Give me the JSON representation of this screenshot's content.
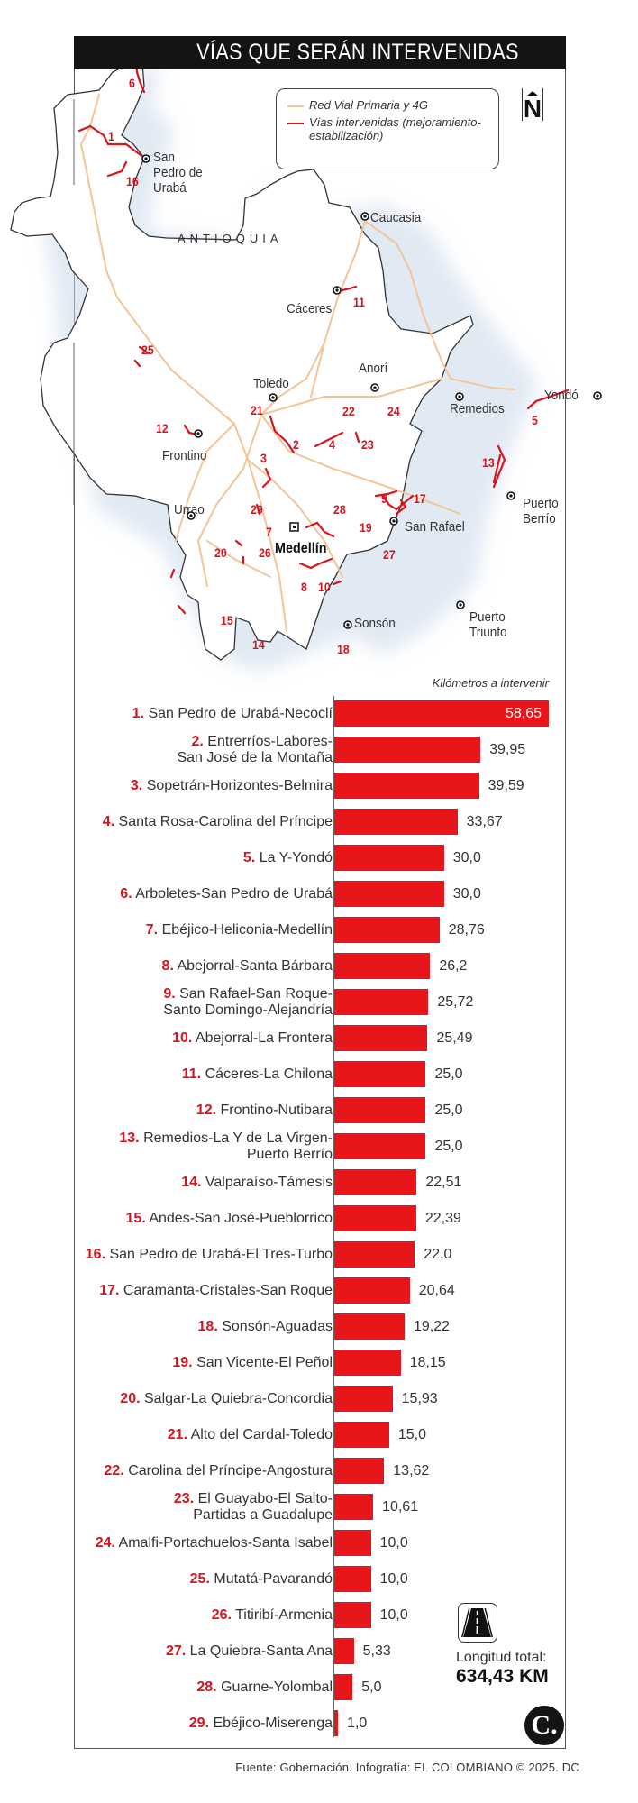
{
  "header": {
    "title": "VÍAS QUE SERÁN INTERVENIDAS"
  },
  "legend": {
    "items": [
      {
        "label": "Red Vial Primaria y 4G",
        "color": "#f2c59a"
      },
      {
        "label": "Vías intervenidas (mejoramiento-estabilización)",
        "color": "#d7141e"
      }
    ],
    "north": "N"
  },
  "map": {
    "region_label": "ANTIOQUIA",
    "cities": [
      {
        "name": "San Pedro de Urabá"
      },
      {
        "name": "Caucasia"
      },
      {
        "name": "Cáceres"
      },
      {
        "name": "Anorí"
      },
      {
        "name": "Toledo"
      },
      {
        "name": "Remedios"
      },
      {
        "name": "Yondó"
      },
      {
        "name": "Frontino"
      },
      {
        "name": "Urrao"
      },
      {
        "name": "Medellín"
      },
      {
        "name": "San Rafael"
      },
      {
        "name": "Puerto Berrío"
      },
      {
        "name": "Sonsón"
      },
      {
        "name": "Puerto Triunfo"
      }
    ],
    "route_numbers": [
      "1",
      "2",
      "3",
      "4",
      "5",
      "6",
      "7",
      "8",
      "9",
      "10",
      "11",
      "12",
      "13",
      "14",
      "15",
      "16",
      "17",
      "18",
      "19",
      "20",
      "21",
      "22",
      "23",
      "24",
      "25",
      "26",
      "27",
      "28",
      "29"
    ]
  },
  "chart_data": {
    "type": "bar",
    "orientation": "horizontal",
    "title": "VÍAS QUE SERÁN INTERVENIDAS",
    "subtitle": "Kilómetros a intervenir",
    "xlabel": "Kilómetros a intervenir",
    "ylabel": "",
    "xlim": [
      0,
      60
    ],
    "grid": false,
    "categories": [
      "1. San Pedro de Urabá-Necoclí",
      "2. Entrerríos-Labores-San José de la Montaña",
      "3. Sopetrán-Horizontes-Belmira",
      "4. Santa Rosa-Carolina del Príncipe",
      "5. La Y-Yondó",
      "6. Arboletes-San Pedro de Urabá",
      "7. Ebéjico-Heliconia-Medellín",
      "8. Abejorral-Santa Bárbara",
      "9. San Rafael-San Roque-Santo Domingo-Alejandría",
      "10. Abejorral-La Frontera",
      "11. Cáceres-La Chilona",
      "12. Frontino-Nutibara",
      "13. Remedios-La Y de La Virgen-Puerto Berrío",
      "14. Valparaíso-Támesis",
      "15. Andes-San José-Pueblorrico",
      "16. San Pedro de Urabá-El Tres-Turbo",
      "17. Caramanta-Cristales-San Roque",
      "18. Sonsón-Aguadas",
      "19. San Vicente-El Peñol",
      "20. Salgar-La Quiebra-Concordia",
      "21. Alto del Cardal-Toledo",
      "22. Carolina del Príncipe-Angostura",
      "23. El Guayabo-El Salto-Partidas a Guadalupe",
      "24. Amalfi-Portachuelos-Santa Isabel",
      "25. Mutatá-Pavarandó",
      "26. Titiribí-Armenia",
      "27. La Quiebra-Santa Ana",
      "28. Guarne-Yolombal",
      "29. Ebéjico-Miserenga"
    ],
    "values": [
      58.65,
      39.95,
      39.59,
      33.67,
      30.0,
      30.0,
      28.76,
      26.2,
      25.72,
      25.49,
      25.0,
      25.0,
      25.0,
      22.51,
      22.39,
      22.0,
      20.64,
      19.22,
      18.15,
      15.93,
      15.0,
      13.62,
      10.61,
      10.0,
      10.0,
      10.0,
      5.33,
      5.0,
      1.0
    ],
    "bar_color": "#e8151b",
    "annotations": [
      "Longitud total: 634,43 KM"
    ]
  },
  "chart": {
    "axis_title": "Kilómetros a intervenir",
    "rows": [
      {
        "n": "1.",
        "line1": "San Pedro de Urabá-Necoclí",
        "line2": "",
        "value": 58.65,
        "display": "58,65"
      },
      {
        "n": "2.",
        "line1": "Entrerríos-Labores-",
        "line2": "San José de la Montaña",
        "value": 39.95,
        "display": "39,95"
      },
      {
        "n": "3.",
        "line1": "Sopetrán-Horizontes-Belmira",
        "line2": "",
        "value": 39.59,
        "display": "39,59"
      },
      {
        "n": "4.",
        "line1": "Santa Rosa-Carolina del Príncipe",
        "line2": "",
        "value": 33.67,
        "display": "33,67"
      },
      {
        "n": "5.",
        "line1": "La Y-Yondó",
        "line2": "",
        "value": 30.0,
        "display": "30,0"
      },
      {
        "n": "6.",
        "line1": "Arboletes-San Pedro de Urabá",
        "line2": "",
        "value": 30.0,
        "display": "30,0"
      },
      {
        "n": "7.",
        "line1": "Ebéjico-Heliconia-Medellín",
        "line2": "",
        "value": 28.76,
        "display": "28,76"
      },
      {
        "n": "8.",
        "line1": "Abejorral-Santa Bárbara",
        "line2": "",
        "value": 26.2,
        "display": "26,2"
      },
      {
        "n": "9.",
        "line1": "San Rafael-San Roque-",
        "line2": "Santo Domingo-Alejandría",
        "value": 25.72,
        "display": "25,72"
      },
      {
        "n": "10.",
        "line1": "Abejorral-La Frontera",
        "line2": "",
        "value": 25.49,
        "display": "25,49"
      },
      {
        "n": "11.",
        "line1": "Cáceres-La Chilona",
        "line2": "",
        "value": 25.0,
        "display": "25,0"
      },
      {
        "n": "12.",
        "line1": "Frontino-Nutibara",
        "line2": "",
        "value": 25.0,
        "display": "25,0"
      },
      {
        "n": "13.",
        "line1": "Remedios-La Y de La Virgen-",
        "line2": "Puerto Berrío",
        "value": 25.0,
        "display": "25,0"
      },
      {
        "n": "14.",
        "line1": "Valparaíso-Támesis",
        "line2": "",
        "value": 22.51,
        "display": "22,51"
      },
      {
        "n": "15.",
        "line1": "Andes-San José-Pueblorrico",
        "line2": "",
        "value": 22.39,
        "display": "22,39"
      },
      {
        "n": "16.",
        "line1": "San Pedro de Urabá-El Tres-Turbo",
        "line2": "",
        "value": 22.0,
        "display": "22,0"
      },
      {
        "n": "17.",
        "line1": "Caramanta-Cristales-San Roque",
        "line2": "",
        "value": 20.64,
        "display": "20,64"
      },
      {
        "n": "18.",
        "line1": "Sonsón-Aguadas",
        "line2": "",
        "value": 19.22,
        "display": "19,22"
      },
      {
        "n": "19.",
        "line1": "San Vicente-El Peñol",
        "line2": "",
        "value": 18.15,
        "display": "18,15"
      },
      {
        "n": "20.",
        "line1": "Salgar-La Quiebra-Concordia",
        "line2": "",
        "value": 15.93,
        "display": "15,93"
      },
      {
        "n": "21.",
        "line1": "Alto del Cardal-Toledo",
        "line2": "",
        "value": 15.0,
        "display": "15,0"
      },
      {
        "n": "22.",
        "line1": "Carolina del Príncipe-Angostura",
        "line2": "",
        "value": 13.62,
        "display": "13,62"
      },
      {
        "n": "23.",
        "line1": "El Guayabo-El Salto-",
        "line2": "Partidas a Guadalupe",
        "value": 10.61,
        "display": "10,61"
      },
      {
        "n": "24.",
        "line1": "Amalfi-Portachuelos-Santa Isabel",
        "line2": "",
        "value": 10.0,
        "display": "10,0"
      },
      {
        "n": "25.",
        "line1": "Mutatá-Pavarandó",
        "line2": "",
        "value": 10.0,
        "display": "10,0"
      },
      {
        "n": "26.",
        "line1": "Titiribí-Armenia",
        "line2": "",
        "value": 10.0,
        "display": "10,0"
      },
      {
        "n": "27.",
        "line1": "La Quiebra-Santa Ana",
        "line2": "",
        "value": 5.33,
        "display": "5,33"
      },
      {
        "n": "28.",
        "line1": "Guarne-Yolombal",
        "line2": "",
        "value": 5.0,
        "display": "5,0"
      },
      {
        "n": "29.",
        "line1": "Ebéjico-Miserenga",
        "line2": "",
        "value": 1.0,
        "display": "1,0"
      }
    ]
  },
  "total": {
    "label": "Longitud total:",
    "value": "634,43 KM",
    "icon": "road-icon"
  },
  "logo": {
    "glyph": "C."
  },
  "footer": {
    "source": "Fuente: Gobernación. Infografía: EL COLOMBIANO © 2025. DC"
  },
  "colors": {
    "accent": "#e8151b",
    "number_red": "#d7141e",
    "road_primary": "#f2c59a",
    "header_bg": "#141414"
  }
}
